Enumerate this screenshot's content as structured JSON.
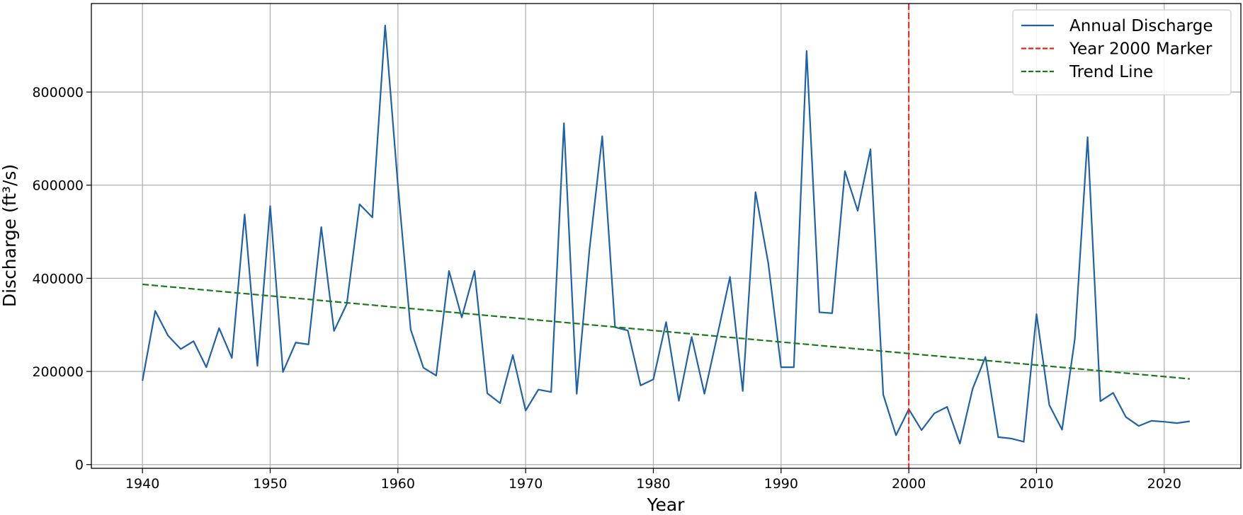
{
  "chart_data": {
    "type": "line",
    "title": "",
    "xlabel": "Year",
    "ylabel": "Discharge (ft³/s)",
    "xlim": [
      1936,
      2026
    ],
    "ylim": [
      -8000,
      990000
    ],
    "x_ticks": [
      1940,
      1950,
      1960,
      1970,
      1980,
      1990,
      2000,
      2010,
      2020
    ],
    "y_ticks": [
      0,
      200000,
      400000,
      600000,
      800000
    ],
    "grid": true,
    "legend_position": "top-right",
    "series": [
      {
        "name": "Annual Discharge",
        "color": "#1f62a8",
        "style": "solid",
        "x": [
          1940,
          1941,
          1942,
          1943,
          1944,
          1945,
          1946,
          1947,
          1948,
          1949,
          1950,
          1951,
          1952,
          1953,
          1954,
          1955,
          1956,
          1957,
          1958,
          1959,
          1960,
          1961,
          1962,
          1963,
          1964,
          1965,
          1966,
          1967,
          1968,
          1969,
          1970,
          1971,
          1972,
          1973,
          1974,
          1975,
          1976,
          1977,
          1978,
          1979,
          1980,
          1981,
          1982,
          1983,
          1984,
          1985,
          1986,
          1987,
          1988,
          1989,
          1990,
          1991,
          1992,
          1993,
          1994,
          1995,
          1996,
          1997,
          1998,
          1999,
          2000,
          2001,
          2002,
          2003,
          2004,
          2005,
          2006,
          2007,
          2008,
          2009,
          2010,
          2011,
          2012,
          2013,
          2014,
          2015,
          2016,
          2017,
          2018,
          2019,
          2020,
          2021,
          2022
        ],
        "values": [
          180000,
          330000,
          277000,
          248000,
          265000,
          209000,
          293000,
          229000,
          537000,
          212000,
          555000,
          199000,
          262000,
          258000,
          510000,
          287000,
          345000,
          559000,
          531000,
          943000,
          600000,
          290000,
          208000,
          191000,
          416000,
          316000,
          416000,
          153000,
          132000,
          235000,
          116000,
          161000,
          156000,
          733000,
          152000,
          462000,
          705000,
          295000,
          288000,
          170000,
          183000,
          306000,
          137000,
          274000,
          152000,
          276000,
          403000,
          158000,
          585000,
          432000,
          209000,
          209000,
          888000,
          327000,
          325000,
          630000,
          545000,
          677000,
          150000,
          63000,
          119000,
          74000,
          110000,
          124000,
          45000,
          163000,
          231000,
          59000,
          56000,
          49000,
          323000,
          128000,
          75000,
          270000,
          703000,
          136000,
          154000,
          102000,
          83000,
          94000,
          92000,
          89000,
          93000
        ]
      },
      {
        "name": "Year 2000 Marker",
        "color": "#e3241b",
        "style": "dashed",
        "x_value": 2000
      },
      {
        "name": "Trend Line",
        "color": "#1a7a1a",
        "style": "dashed",
        "x": [
          1940,
          2022
        ],
        "values": [
          387000,
          184000
        ]
      }
    ]
  }
}
